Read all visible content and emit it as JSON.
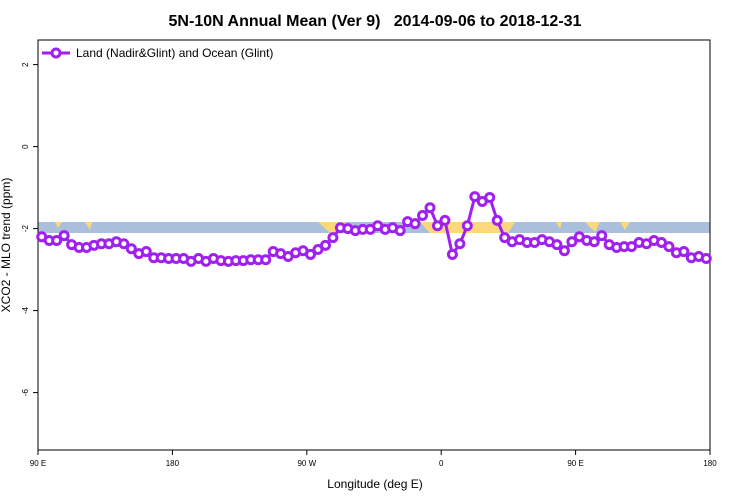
{
  "chart_data": {
    "type": "line",
    "title": "5N-10N Annual Mean (Ver 9)   2014-09-06 to 2018-12-31",
    "x_label": "Longitude (deg E)",
    "y_label": "XCO2 - MLO trend (ppm)",
    "xlim": [
      90,
      540
    ],
    "xticks": [
      {
        "value": 90,
        "label": "90 E"
      },
      {
        "value": 180,
        "label": "180"
      },
      {
        "value": 270,
        "label": "90 W"
      },
      {
        "value": 360,
        "label": "0"
      },
      {
        "value": 450,
        "label": "90 E"
      },
      {
        "value": 540,
        "label": "180"
      }
    ],
    "ylim": [
      -7.4,
      2.6
    ],
    "yticks": [
      -6,
      -4,
      -2,
      0,
      2
    ],
    "x": [
      92.5,
      97.5,
      102.5,
      107.5,
      112.5,
      117.5,
      122.5,
      127.5,
      132.5,
      137.5,
      142.5,
      147.5,
      152.5,
      157.5,
      162.5,
      167.5,
      172.5,
      177.5,
      182.5,
      187.5,
      192.5,
      197.5,
      202.5,
      207.5,
      212.5,
      217.5,
      222.5,
      227.5,
      232.5,
      237.5,
      242.5,
      247.5,
      252.5,
      257.5,
      262.5,
      267.5,
      272.5,
      277.5,
      282.5,
      287.5,
      292.5,
      297.5,
      302.5,
      307.5,
      312.5,
      317.5,
      322.5,
      327.5,
      332.5,
      337.5,
      342.5,
      347.5,
      352.5,
      357.5,
      362.5,
      367.5,
      372.5,
      377.5,
      382.5,
      387.5,
      392.5,
      397.5,
      402.5,
      407.5,
      412.5,
      417.5,
      422.5,
      427.5,
      432.5,
      437.5,
      442.5,
      447.5,
      452.5,
      457.5,
      462.5,
      467.5,
      472.5,
      477.5,
      482.5,
      487.5,
      492.5,
      497.5,
      502.5,
      507.5,
      512.5,
      517.5,
      522.5,
      527.5,
      532.5,
      537.5
    ],
    "series": [
      {
        "name": "Land (Nadir&Glint) and Ocean (Glint)",
        "color": "#a020f0",
        "values": [
          -2.2,
          -2.29,
          -2.29,
          -2.17,
          -2.39,
          -2.46,
          -2.46,
          -2.41,
          -2.37,
          -2.37,
          -2.32,
          -2.37,
          -2.49,
          -2.61,
          -2.56,
          -2.71,
          -2.71,
          -2.73,
          -2.73,
          -2.73,
          -2.8,
          -2.73,
          -2.8,
          -2.73,
          -2.78,
          -2.8,
          -2.78,
          -2.78,
          -2.76,
          -2.76,
          -2.76,
          -2.56,
          -2.61,
          -2.68,
          -2.59,
          -2.54,
          -2.63,
          -2.51,
          -2.41,
          -2.22,
          -1.98,
          -2.0,
          -2.05,
          -2.02,
          -2.02,
          -1.93,
          -2.02,
          -1.98,
          -2.05,
          -1.83,
          -1.88,
          -1.68,
          -1.49,
          -1.93,
          -1.8,
          -2.63,
          -2.37,
          -1.93,
          -1.22,
          -1.34,
          -1.24,
          -1.8,
          -2.22,
          -2.32,
          -2.27,
          -2.34,
          -2.34,
          -2.27,
          -2.32,
          -2.39,
          -2.54,
          -2.32,
          -2.2,
          -2.29,
          -2.32,
          -2.17,
          -2.39,
          -2.46,
          -2.44,
          -2.44,
          -2.34,
          -2.37,
          -2.29,
          -2.34,
          -2.44,
          -2.59,
          -2.56,
          -2.71,
          -2.68,
          -2.73
        ]
      }
    ]
  }
}
